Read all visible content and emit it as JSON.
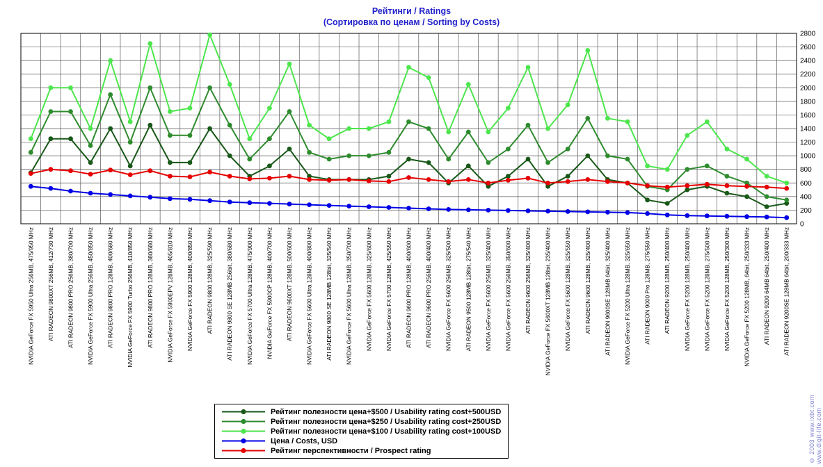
{
  "title": {
    "line1": "Рейтинги / Ratings",
    "line2": "(Сортировка по ценам / Sorting by Costs)"
  },
  "copyright": {
    "line1": "© 2003 www.ixbt.com",
    "line2": "www.digit-life.com"
  },
  "chart_data": {
    "type": "line",
    "title": "Рейтинги / Ratings (Сортировка по ценам / Sorting by Costs)",
    "xlabel": "",
    "ylabel": "",
    "ylim": [
      0,
      2800
    ],
    "ytick_step": 200,
    "grid": true,
    "legend_position": "bottom",
    "categories": [
      "NVIDIA GeForce FX 5950 Ultra 256MB, 475/950 MHz",
      "ATI RADEON 9800XT 256MB, 412/730 MHz",
      "ATI RADEON 9800 PRO 256MB, 380/700 MHz",
      "NVIDIA GeForce FX 5900 Ultra 256MB, 450/850 MHz",
      "ATI RADEON 9800 PRO 128MB, 400/680 MHz",
      "NVIDIA GeForce FX 5900 Turbo 256MB, 410/850 MHz",
      "ATI RADEON 9800 PRO 128MB, 380/680 MHz",
      "NVIDIA GeForce FX 5900EPV 128MB, 405/810 MHz",
      "NVIDIA GeForce FX 5900 128MB, 400/850 MHz",
      "ATI RADEON 9800 128MB, 325/590 MHz",
      "ATI RADEON 9800 SE 128MB 256bit, 380/680 MHz",
      "NVIDIA GeForce FX 5700 Ultra 128MB, 475/900 MHz",
      "NVIDIA GeForce FX 5900CP 128MB, 400/700 MHz",
      "ATI RADEON 9600XT 128MB, 500/600 MHz",
      "NVIDIA GeForce FX 5600 Ultra 128MB, 400/800 MHz",
      "ATI RADEON 9800 SE 128MB 128bit, 325/540 MHz",
      "NVIDIA GeForce FX 5600 Ultra 128MB, 350/700 MHz",
      "NVIDIA GeForce FX 5600 128MB, 325/600 MHz",
      "NVIDIA GeForce FX 5700 128MB, 425/550 MHz",
      "ATI RADEON 9600 PRO 128MB, 400/600 MHz",
      "ATI RADEON 9600 PRO 256MB, 400/400 MHz",
      "NVIDIA GeForce FX 5600 256MB, 325/500 MHz",
      "ATI RADEON 9500 128MB 128bit, 275/540 MHz",
      "NVIDIA GeForce FX 5600 256MB, 325/400 MHz",
      "NVIDIA GeForce FX 5600 256MB, 350/600 MHz",
      "ATI RADEON 9600 256MB, 325/400 MHz",
      "NVIDIA GeForce FX 5600XT 128MB 128bit, 235/400 MHz",
      "NVIDIA GeForce FX 5600 128MB, 325/550 MHz",
      "ATI RADEON 9600 128MB, 325/400 MHz",
      "ATI RADEON 9600SE 128MB 64bit, 325/400 MHz",
      "NVIDIA GeForce FX 5200 Ultra 128MB, 325/650 MHz",
      "ATI RADEON 9000 Pro 128MB, 275/550 MHz",
      "ATI RADEON 9200 128MB, 250/400 MHz",
      "NVIDIA GeForce FX 5200 128MB, 250/400 MHz",
      "NVIDIA GeForce FX 5200 128MB, 275/500 MHz",
      "NVIDIA GeForce FX 5200 128MB, 250/300 MHz",
      "NVIDIA GeForce FX 5200 128MB, 64bit, 250/333 MHz",
      "ATI RADEON 9200 64MB 64bit, 250/400 MHz",
      "ATI RADEON 9200SE 128MB 64bit, 200/333 MHz"
    ],
    "series": [
      {
        "name": "Рейтинг полезности цена+$500 / Usability rating cost+500USD",
        "color": "#185818",
        "values": [
          750,
          1250,
          1250,
          900,
          1400,
          850,
          1450,
          900,
          900,
          1400,
          1000,
          700,
          850,
          1100,
          700,
          650,
          650,
          650,
          700,
          950,
          900,
          600,
          850,
          550,
          700,
          950,
          550,
          700,
          1000,
          650,
          600,
          350,
          300,
          500,
          550,
          450,
          400,
          250,
          300
        ]
      },
      {
        "name": "Рейтинг полезности цена+$250 / Usability rating cost+250USD",
        "color": "#2e8b2e",
        "values": [
          1050,
          1650,
          1650,
          1150,
          1900,
          1200,
          2000,
          1300,
          1300,
          2000,
          1450,
          950,
          1250,
          1650,
          1050,
          950,
          1000,
          1000,
          1050,
          1500,
          1400,
          950,
          1350,
          900,
          1100,
          1450,
          900,
          1100,
          1550,
          1000,
          950,
          550,
          500,
          800,
          850,
          700,
          600,
          400,
          350
        ]
      },
      {
        "name": "Рейтинг полезности цена+$100 / Usability rating cost+100USD",
        "color": "#4de64d",
        "values": [
          1250,
          2000,
          2000,
          1400,
          2400,
          1500,
          2650,
          1650,
          1700,
          2780,
          2050,
          1250,
          1700,
          2350,
          1450,
          1250,
          1400,
          1400,
          1500,
          2300,
          2150,
          1350,
          2050,
          1350,
          1700,
          2300,
          1400,
          1750,
          2550,
          1550,
          1500,
          850,
          800,
          1300,
          1500,
          1100,
          950,
          700,
          600
        ]
      },
      {
        "name": "Цена / Costs, USD",
        "color": "#0000e6",
        "values": [
          550,
          520,
          480,
          450,
          430,
          410,
          390,
          370,
          360,
          340,
          320,
          310,
          300,
          290,
          280,
          270,
          260,
          250,
          240,
          230,
          220,
          210,
          205,
          200,
          195,
          190,
          185,
          180,
          175,
          170,
          165,
          150,
          130,
          120,
          115,
          110,
          105,
          100,
          90
        ]
      },
      {
        "name": "Рейтинг перспективности / Prospect rating",
        "color": "#e60000",
        "values": [
          740,
          800,
          780,
          730,
          790,
          720,
          780,
          700,
          690,
          760,
          700,
          660,
          670,
          700,
          650,
          640,
          650,
          630,
          620,
          680,
          650,
          620,
          650,
          600,
          640,
          670,
          600,
          620,
          650,
          620,
          600,
          560,
          540,
          560,
          580,
          560,
          550,
          540,
          520
        ]
      }
    ]
  }
}
